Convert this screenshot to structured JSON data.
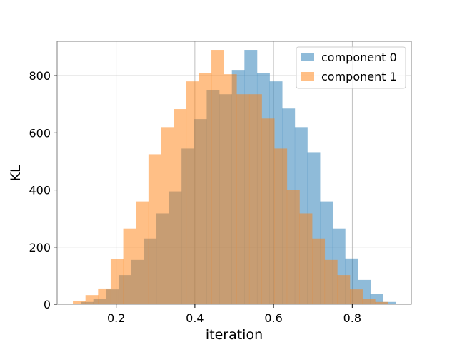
{
  "chart_data": {
    "type": "bar",
    "xlabel": "iteration",
    "ylabel": "KL",
    "xlim": [
      0.05,
      0.95
    ],
    "ylim": [
      0,
      920
    ],
    "x_ticks": [
      0.2,
      0.4,
      0.6,
      0.8
    ],
    "x_tick_labels": [
      "0.2",
      "0.4",
      "0.6",
      "0.8"
    ],
    "y_ticks": [
      0,
      200,
      400,
      600,
      800
    ],
    "y_tick_labels": [
      "0",
      "200",
      "400",
      "600",
      "800"
    ],
    "grid": true,
    "legend_position": "top-right",
    "bin_width": 0.032,
    "series": [
      {
        "name": "component 0",
        "color": "#1f77b4",
        "opacity": 0.5,
        "bin_starts": [
          0.11,
          0.142,
          0.174,
          0.206,
          0.238,
          0.27,
          0.302,
          0.334,
          0.366,
          0.398,
          0.43,
          0.462,
          0.494,
          0.526,
          0.558,
          0.59,
          0.622,
          0.654,
          0.686,
          0.718,
          0.75,
          0.782,
          0.814,
          0.846,
          0.878
        ],
        "values": [
          8,
          18,
          52,
          102,
          155,
          230,
          318,
          395,
          545,
          648,
          750,
          735,
          820,
          890,
          810,
          780,
          685,
          620,
          530,
          360,
          265,
          160,
          85,
          35,
          8
        ]
      },
      {
        "name": "component 1",
        "color": "#ff7f0e",
        "opacity": 0.5,
        "bin_starts": [
          0.09,
          0.122,
          0.154,
          0.186,
          0.218,
          0.25,
          0.282,
          0.314,
          0.346,
          0.378,
          0.41,
          0.442,
          0.474,
          0.506,
          0.538,
          0.57,
          0.602,
          0.634,
          0.666,
          0.698,
          0.73,
          0.762,
          0.794,
          0.826,
          0.858
        ],
        "values": [
          10,
          32,
          55,
          158,
          265,
          360,
          525,
          620,
          683,
          780,
          810,
          890,
          805,
          735,
          735,
          650,
          545,
          400,
          318,
          230,
          155,
          102,
          52,
          18,
          8
        ]
      }
    ]
  }
}
